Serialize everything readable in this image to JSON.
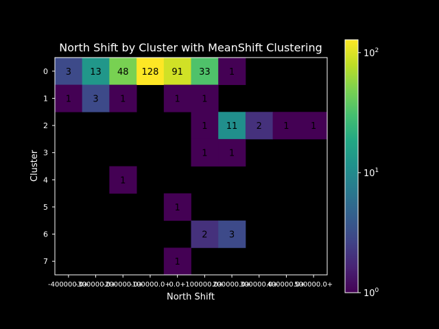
{
  "chart_data": {
    "type": "heatmap",
    "title": "North Shift by Cluster with MeanShift Clustering",
    "xlabel": "North Shift",
    "ylabel": "Cluster",
    "x_categories": [
      "-400000.0+",
      "-300000.0+",
      "-200000.0+",
      "-100000.0+",
      "0.0+",
      "100000.0+",
      "200000.0+",
      "300000.0+",
      "400000.0+",
      "500000.0+"
    ],
    "y_categories": [
      "0",
      "1",
      "2",
      "3",
      "4",
      "5",
      "6",
      "7"
    ],
    "values": [
      [
        3,
        13,
        48,
        128,
        91,
        33,
        1,
        null,
        null,
        null
      ],
      [
        1,
        3,
        1,
        null,
        1,
        1,
        null,
        null,
        null,
        null
      ],
      [
        null,
        null,
        null,
        null,
        null,
        1,
        11,
        2,
        1,
        1
      ],
      [
        null,
        null,
        null,
        null,
        null,
        1,
        1,
        null,
        null,
        null
      ],
      [
        null,
        null,
        1,
        null,
        null,
        null,
        null,
        null,
        null,
        null
      ],
      [
        null,
        null,
        null,
        null,
        1,
        null,
        null,
        null,
        null,
        null
      ],
      [
        null,
        null,
        null,
        null,
        null,
        2,
        3,
        null,
        null,
        null
      ],
      [
        null,
        null,
        null,
        null,
        1,
        null,
        null,
        null,
        null,
        null
      ]
    ],
    "colormap": "viridis",
    "color_scale": "log",
    "colorbar_range": [
      1,
      128
    ],
    "colorbar_ticks": [
      {
        "base": "10",
        "exp": "0",
        "value": 1
      },
      {
        "base": "10",
        "exp": "1",
        "value": 10
      },
      {
        "base": "10",
        "exp": "2",
        "value": 100
      }
    ],
    "background": "#000000"
  }
}
